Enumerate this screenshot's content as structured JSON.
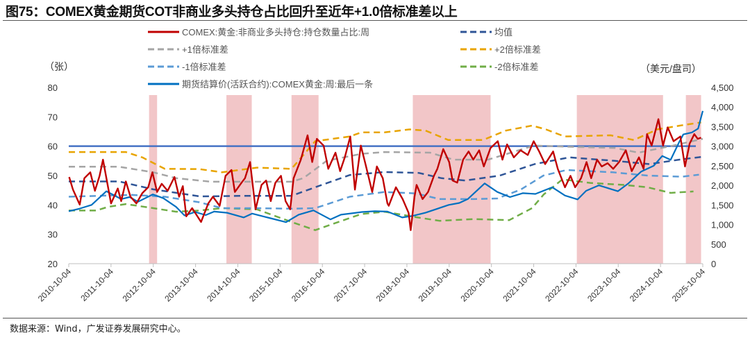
{
  "title": "图75：COMEX黄金期货COT非商业多头持仓占比回升至近年+1.0倍标准差以上",
  "source": "数据来源：Wind，广发证券发展研究中心。",
  "chart_data": {
    "type": "line",
    "title": "图75：COMEX黄金期货COT非商业多头持仓占比回升至近年+1.0倍标准差以上",
    "left_axis": {
      "unit_label": "（张）",
      "ylim": [
        20,
        80
      ],
      "ticks": [
        "20",
        "30",
        "40",
        "50",
        "60",
        "70",
        "80"
      ]
    },
    "right_axis": {
      "unit_label": "（美元/盘司）",
      "ylim": [
        0,
        4500
      ],
      "ticks": [
        "0",
        "500",
        "1,000",
        "1,500",
        "2,000",
        "2,500",
        "3,000",
        "3,500",
        "4,000",
        "4,500"
      ]
    },
    "x_axis": {
      "range": [
        "2010-10-04",
        "2025-10-04"
      ],
      "tick_labels": [
        "2010-10-04",
        "2011-10-04",
        "2012-10-04",
        "2013-10-04",
        "2014-10-04",
        "2015-10-04",
        "2016-10-04",
        "2017-10-04",
        "2018-10-04",
        "2019-10-04",
        "2020-10-04",
        "2021-10-04",
        "2022-10-04",
        "2023-10-04",
        "2024-10-04",
        "2025-10-04"
      ]
    },
    "grid": false,
    "legend_placement": "top",
    "reference_line": {
      "axis": "left",
      "value": 60,
      "color": "#4472C4"
    },
    "shaded_periods": {
      "color": "#F2C6C8",
      "ranges": [
        [
          2012.66,
          2012.85
        ],
        [
          2014.49,
          2015.09
        ],
        [
          2016.03,
          2016.67
        ],
        [
          2018.9,
          2020.74
        ],
        [
          2022.78,
          2024.82
        ],
        [
          2025.36,
          2025.72
        ]
      ]
    },
    "series": [
      {
        "name": "COMEX:黄金:非商业多头持仓:持仓数量占比:周",
        "axis": "left",
        "color": "#C00000",
        "style": "solid",
        "x": [
          2010.77,
          2010.86,
          2011.02,
          2011.13,
          2011.27,
          2011.38,
          2011.49,
          2011.57,
          2011.68,
          2011.76,
          2011.92,
          2012.0,
          2012.11,
          2012.22,
          2012.36,
          2012.5,
          2012.64,
          2012.74,
          2012.85,
          2012.96,
          2013.1,
          2013.26,
          2013.37,
          2013.46,
          2013.54,
          2013.68,
          2013.89,
          2014.06,
          2014.17,
          2014.33,
          2014.47,
          2014.61,
          2014.69,
          2014.85,
          2014.93,
          2015.05,
          2015.18,
          2015.32,
          2015.43,
          2015.54,
          2015.65,
          2015.78,
          2015.89,
          2016.0,
          2016.08,
          2016.25,
          2016.41,
          2016.52,
          2016.63,
          2016.79,
          2016.9,
          2017.07,
          2017.18,
          2017.29,
          2017.42,
          2017.53,
          2017.67,
          2017.78,
          2017.94,
          2018.05,
          2018.19,
          2018.3,
          2018.33,
          2018.5,
          2018.66,
          2018.8,
          2018.85,
          2018.94,
          2018.99,
          2019.13,
          2019.26,
          2019.4,
          2019.48,
          2019.62,
          2019.76,
          2019.84,
          2019.95,
          2020.09,
          2020.22,
          2020.33,
          2020.47,
          2020.58,
          2020.74,
          2020.91,
          2021.02,
          2021.13,
          2021.29,
          2021.45,
          2021.62,
          2021.76,
          2021.89,
          2022.03,
          2022.22,
          2022.33,
          2022.5,
          2022.63,
          2022.74,
          2022.88,
          2023.01,
          2023.12,
          2023.26,
          2023.37,
          2023.51,
          2023.64,
          2023.78,
          2023.94,
          2024.08,
          2024.25,
          2024.36,
          2024.44,
          2024.55,
          2024.71,
          2024.82,
          2024.93,
          2025.07,
          2025.23,
          2025.34,
          2025.45,
          2025.56,
          2025.64,
          2025.72
        ],
        "y": [
          49.5,
          45.2,
          40.1,
          49.1,
          51.1,
          44.8,
          49.9,
          55.4,
          46.8,
          40.5,
          45.6,
          41.3,
          48.0,
          42.8,
          40.5,
          44.0,
          46.0,
          51.1,
          44.4,
          47.2,
          44.8,
          49.5,
          42.8,
          46.4,
          36.1,
          38.9,
          34.2,
          40.5,
          42.8,
          39.7,
          49.9,
          51.9,
          44.4,
          47.6,
          49.1,
          54.6,
          38.5,
          46.8,
          48.3,
          41.3,
          47.6,
          49.9,
          41.3,
          38.5,
          49.1,
          55.4,
          63.7,
          54.6,
          62.5,
          60.2,
          52.3,
          57.8,
          51.5,
          56.2,
          63.3,
          45.2,
          60.2,
          53.9,
          44.4,
          53.1,
          49.1,
          40.5,
          39.7,
          46.0,
          42.0,
          37.3,
          31.4,
          42.8,
          46.8,
          42.0,
          44.4,
          49.9,
          52.3,
          59.0,
          54.6,
          48.3,
          47.6,
          55.4,
          58.2,
          55.4,
          58.6,
          53.1,
          59.4,
          61.7,
          55.4,
          60.6,
          56.2,
          58.6,
          57.0,
          61.7,
          58.2,
          53.9,
          58.2,
          52.3,
          46.0,
          49.9,
          46.0,
          49.1,
          54.6,
          49.1,
          55.4,
          53.1,
          54.2,
          52.3,
          54.6,
          58.6,
          51.5,
          56.2,
          52.3,
          64.1,
          60.2,
          69.2,
          60.2,
          66.4,
          61.7,
          63.3,
          53.1,
          60.9,
          64.1,
          62.5,
          62.9
        ]
      },
      {
        "name": "均值",
        "axis": "left",
        "color": "#2F5597",
        "style": "dashed",
        "x": [
          2010.76,
          2011.95,
          2012.76,
          2013.87,
          2014.95,
          2016.03,
          2016.59,
          2017.41,
          2018.23,
          2019.04,
          2019.58,
          2020.14,
          2020.96,
          2021.78,
          2022.6,
          2023.68,
          2024.5,
          2025.2,
          2025.76
        ],
        "y": [
          48.0,
          48.0,
          45.3,
          42.9,
          43.1,
          43.1,
          46.0,
          50.2,
          51.2,
          50.9,
          49.1,
          48.3,
          50.0,
          53.9,
          56.2,
          55.0,
          53.9,
          55.4,
          56.4
        ]
      },
      {
        "name": "+1倍标准差",
        "axis": "left",
        "color": "#A5A5A5",
        "style": "dashed",
        "x": [
          2010.76,
          2011.95,
          2012.76,
          2013.3,
          2014.13,
          2014.95,
          2016.03,
          2016.31,
          2016.86,
          2017.68,
          2018.23,
          2019.31,
          2019.86,
          2020.68,
          2021.22,
          2021.77,
          2022.6,
          2023.68,
          2024.24,
          2025.06,
          2025.76
        ],
        "y": [
          53.0,
          53.0,
          51.1,
          49.1,
          47.9,
          47.9,
          47.9,
          49.1,
          55.0,
          57.4,
          58.0,
          57.8,
          55.4,
          55.4,
          57.8,
          60.2,
          59.8,
          59.4,
          57.8,
          60.2,
          62.5
        ]
      },
      {
        "name": "+2倍标准差",
        "axis": "left",
        "color": "#E8A400",
        "style": "dashed",
        "x": [
          2010.76,
          2012.11,
          2012.5,
          2013.03,
          2013.85,
          2014.39,
          2015.21,
          2016.03,
          2016.59,
          2017.41,
          2017.68,
          2018.23,
          2018.82,
          2019.2,
          2019.74,
          2020.56,
          2021.1,
          2021.72,
          2022.05,
          2022.49,
          2023.58,
          2024.13,
          2024.68,
          2025.22,
          2025.72
        ],
        "y": [
          58.0,
          58.0,
          56.2,
          52.3,
          52.2,
          51.1,
          52.7,
          52.3,
          61.7,
          63.3,
          64.7,
          64.7,
          65.7,
          65.3,
          62.1,
          62.1,
          65.3,
          67.0,
          65.7,
          63.3,
          63.7,
          62.1,
          65.7,
          67.0,
          68.1
        ]
      },
      {
        "name": "-1倍标准差",
        "axis": "left",
        "color": "#5B9BD5",
        "style": "dashed",
        "x": [
          2010.76,
          2011.71,
          2012.25,
          2013.03,
          2013.85,
          2014.39,
          2015.21,
          2016.03,
          2016.59,
          2017.41,
          2018.23,
          2018.99,
          2019.53,
          2020.35,
          2020.9,
          2021.45,
          2021.99,
          2022.54,
          2023.63,
          2024.45,
          2025.27,
          2025.67
        ],
        "y": [
          42.8,
          43.2,
          43.4,
          42.8,
          40.9,
          38.9,
          38.9,
          38.7,
          38.9,
          42.8,
          44.4,
          43.9,
          42.0,
          42.0,
          42.2,
          45.2,
          50.0,
          51.9,
          51.1,
          50.0,
          49.6,
          50.3
        ]
      },
      {
        "name": "-2倍标准差",
        "axis": "left",
        "color": "#70AD47",
        "style": "dashed",
        "x": [
          2010.76,
          2011.41,
          2011.68,
          2012.11,
          2012.76,
          2013.3,
          2013.85,
          2014.39,
          2015.21,
          2016.03,
          2016.59,
          2017.14,
          2017.68,
          2018.23,
          2018.99,
          2019.53,
          2020.35,
          2021.18,
          2021.72,
          2022.0,
          2022.44,
          2023.1,
          2023.9,
          2024.45,
          2025.0,
          2025.54
        ],
        "y": [
          38.1,
          38.1,
          39.3,
          40.3,
          38.9,
          37.7,
          38.1,
          38.9,
          38.5,
          34.2,
          31.4,
          34.2,
          36.9,
          37.7,
          35.8,
          34.6,
          35.2,
          34.8,
          38.9,
          43.6,
          48.7,
          47.5,
          46.8,
          46.0,
          44.1,
          44.6
        ]
      },
      {
        "name": "期货结算价(活跃合约):COMEX黄金:周:最后一条",
        "axis": "right",
        "color": "#0070C0",
        "style": "solid",
        "x": [
          2010.76,
          2011.0,
          2011.3,
          2011.65,
          2012.0,
          2012.2,
          2012.4,
          2012.75,
          2013.0,
          2013.3,
          2013.5,
          2013.75,
          2014.0,
          2014.2,
          2014.5,
          2014.9,
          2015.1,
          2015.5,
          2015.9,
          2016.2,
          2016.55,
          2016.95,
          2017.2,
          2017.7,
          2018.0,
          2018.3,
          2018.65,
          2018.9,
          2019.2,
          2019.5,
          2019.75,
          2020.0,
          2020.2,
          2020.6,
          2020.9,
          2021.2,
          2021.5,
          2021.8,
          2022.2,
          2022.5,
          2022.8,
          2023.0,
          2023.3,
          2023.75,
          2024.0,
          2024.3,
          2024.6,
          2024.8,
          2025.0,
          2025.2,
          2025.3,
          2025.5,
          2025.65,
          2025.76
        ],
        "y": [
          1340,
          1400,
          1500,
          1850,
          1650,
          1700,
          1580,
          1770,
          1670,
          1450,
          1230,
          1320,
          1240,
          1330,
          1300,
          1180,
          1280,
          1170,
          1060,
          1250,
          1360,
          1130,
          1250,
          1320,
          1340,
          1330,
          1180,
          1220,
          1300,
          1410,
          1500,
          1550,
          1650,
          2050,
          1830,
          1700,
          1800,
          1780,
          1950,
          1740,
          1640,
          1860,
          2000,
          1850,
          2050,
          2350,
          2500,
          2750,
          2650,
          3100,
          3300,
          3350,
          3450,
          3900
        ]
      }
    ]
  }
}
